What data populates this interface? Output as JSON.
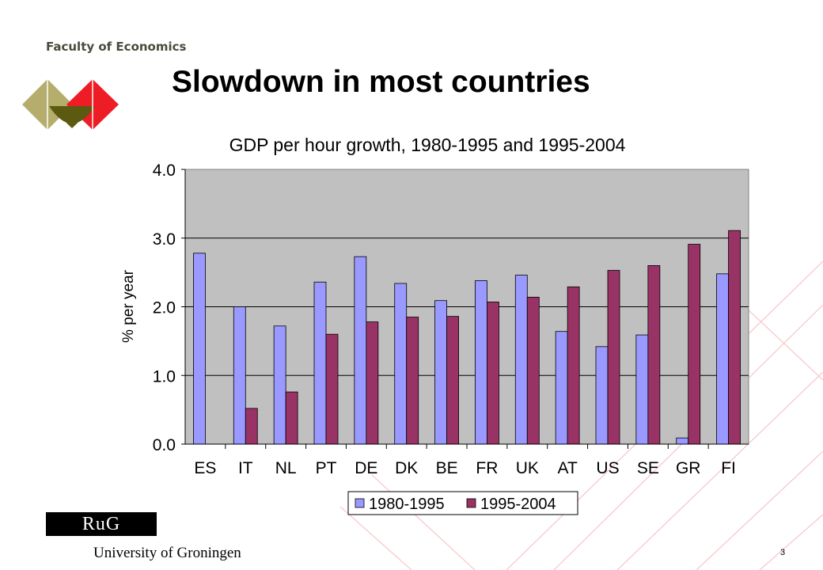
{
  "header": {
    "faculty": "Faculty of Economics",
    "slide_title": "Slowdown in most countries"
  },
  "footer": {
    "rug": "RuG",
    "university": "University of Groningen",
    "page_number": "3"
  },
  "colors": {
    "logo_khaki": "#b5ad6b",
    "logo_olive": "#5c5a10",
    "logo_red": "#ee1c25",
    "plot_bg": "#c0c0c0",
    "series1": "#9999ff",
    "series2": "#993366",
    "bg_lines": "#f7d0d3"
  },
  "chart_data": {
    "type": "bar",
    "title": "GDP per hour growth, 1980-1995 and 1995-2004",
    "ylabel": "% per year",
    "xlabel": "",
    "ylim": [
      0,
      4
    ],
    "yticks": [
      "0.0",
      "1.0",
      "2.0",
      "3.0",
      "4.0"
    ],
    "grid": true,
    "legend_position": "bottom",
    "categories": [
      "ES",
      "IT",
      "NL",
      "PT",
      "DE",
      "DK",
      "BE",
      "FR",
      "UK",
      "AT",
      "US",
      "SE",
      "GR",
      "FI"
    ],
    "series": [
      {
        "name": "1980-1995",
        "values": [
          2.78,
          2.0,
          1.72,
          2.36,
          2.73,
          2.34,
          2.09,
          2.38,
          2.46,
          1.64,
          1.42,
          1.59,
          0.09,
          2.48
        ]
      },
      {
        "name": "1995-2004",
        "values": [
          null,
          0.52,
          0.76,
          1.6,
          1.78,
          1.85,
          1.86,
          2.07,
          2.14,
          2.29,
          2.53,
          2.6,
          2.91,
          3.11
        ]
      }
    ]
  }
}
